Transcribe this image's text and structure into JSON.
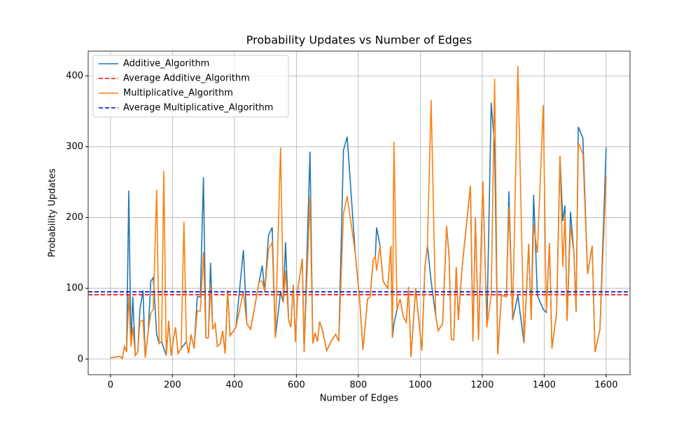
{
  "chart_data": {
    "type": "line",
    "title": "Probability Updates vs Number of Edges",
    "x_label": "Number of Edges",
    "y_label": "Probability Updates",
    "xlim": [
      -72,
      1677
    ],
    "ylim": [
      -22,
      435
    ],
    "xticks": [
      0,
      200,
      400,
      600,
      800,
      1000,
      1200,
      1400,
      1600
    ],
    "yticks": [
      0,
      100,
      200,
      300,
      400
    ],
    "grid": true,
    "legend": "upper left",
    "x": [
      0,
      20,
      30,
      38,
      45,
      52,
      59,
      66,
      72,
      80,
      88,
      95,
      105,
      112,
      122,
      130,
      138,
      149,
      157,
      165,
      172,
      180,
      188,
      196,
      204,
      210,
      218,
      228,
      237,
      245,
      252,
      260,
      270,
      280,
      290,
      300,
      308,
      316,
      323,
      330,
      338,
      345,
      355,
      362,
      370,
      378,
      386,
      405,
      429,
      440,
      452,
      466,
      480,
      490,
      498,
      510,
      522,
      532,
      549,
      558,
      565,
      575,
      582,
      590,
      597,
      605,
      619,
      625,
      644,
      653,
      660,
      668,
      675,
      685,
      698,
      712,
      727,
      737,
      752,
      764,
      790,
      805,
      815,
      830,
      838,
      848,
      855,
      859,
      870,
      880,
      895,
      905,
      910,
      915,
      925,
      935,
      945,
      955,
      962,
      970,
      985,
      1005,
      1015,
      1023,
      1035,
      1050,
      1058,
      1072,
      1085,
      1093,
      1100,
      1108,
      1116,
      1123,
      1135,
      1162,
      1170,
      1178,
      1188,
      1202,
      1215,
      1229,
      1240,
      1250,
      1262,
      1278,
      1286,
      1298,
      1315,
      1335,
      1350,
      1358,
      1366,
      1378,
      1397,
      1407,
      1417,
      1425,
      1440,
      1451,
      1460,
      1467,
      1474,
      1485,
      1496,
      1503,
      1510,
      1525,
      1540,
      1555,
      1564,
      1580,
      1600
    ],
    "series": [
      {
        "name": "Additive_Algorithm",
        "color": "#1f77b4",
        "style": "solid",
        "values": [
          2,
          3,
          4,
          1,
          18,
          10,
          238,
          18,
          88,
          5,
          10,
          70,
          97,
          2,
          40,
          110,
          115,
          35,
          22,
          25,
          15,
          5,
          54,
          5,
          30,
          45,
          8,
          15,
          20,
          25,
          8,
          35,
          15,
          88,
          88,
          257,
          30,
          30,
          136,
          42,
          50,
          18,
          22,
          40,
          8,
          97,
          33,
          45,
          154,
          50,
          42,
          75,
          110,
          132,
          95,
          175,
          186,
          30,
          95,
          80,
          165,
          55,
          45,
          105,
          24,
          100,
          142,
          10,
          293,
          22,
          37,
          25,
          53,
          40,
          12,
          25,
          35,
          25,
          295,
          314,
          150,
          80,
          13,
          85,
          88,
          140,
          145,
          186,
          160,
          110,
          100,
          160,
          30,
          50,
          70,
          85,
          60,
          52,
          102,
          3,
          100,
          12,
          130,
          160,
          110,
          60,
          40,
          50,
          188,
          145,
          28,
          27,
          130,
          55,
          130,
          245,
          25,
          200,
          27,
          251,
          45,
          362,
          300,
          7,
          90,
          88,
          237,
          55,
          90,
          22,
          163,
          55,
          232,
          90,
          70,
          66,
          164,
          15,
          65,
          287,
          195,
          217,
          54,
          208,
          150,
          67,
          328,
          312,
          120,
          160,
          10,
          42,
          299
        ]
      },
      {
        "name": "Average Additive_Algorithm",
        "color": "#ff0000",
        "style": "dashed",
        "value": 91
      },
      {
        "name": "Multiplicative_Algorithm",
        "color": "#ff7f0e",
        "style": "solid",
        "values": [
          2,
          3,
          4,
          1,
          18,
          10,
          90,
          18,
          45,
          5,
          10,
          53,
          55,
          2,
          40,
          65,
          70,
          239,
          22,
          25,
          266,
          5,
          54,
          5,
          30,
          45,
          8,
          15,
          194,
          25,
          8,
          35,
          15,
          68,
          68,
          151,
          30,
          30,
          105,
          42,
          50,
          18,
          22,
          40,
          8,
          97,
          33,
          45,
          95,
          50,
          42,
          75,
          110,
          110,
          95,
          155,
          165,
          30,
          299,
          80,
          125,
          55,
          45,
          105,
          24,
          100,
          142,
          10,
          230,
          22,
          37,
          25,
          53,
          40,
          12,
          25,
          35,
          25,
          205,
          230,
          150,
          80,
          13,
          85,
          88,
          140,
          145,
          125,
          160,
          110,
          100,
          160,
          30,
          307,
          70,
          85,
          60,
          52,
          102,
          3,
          100,
          12,
          130,
          160,
          366,
          60,
          40,
          50,
          188,
          145,
          28,
          27,
          130,
          55,
          130,
          245,
          25,
          200,
          27,
          251,
          45,
          90,
          396,
          7,
          90,
          88,
          215,
          55,
          414,
          22,
          163,
          55,
          190,
          150,
          359,
          66,
          164,
          15,
          65,
          287,
          130,
          205,
          54,
          187,
          150,
          67,
          305,
          290,
          120,
          160,
          10,
          42,
          258
        ]
      },
      {
        "name": "Average Multiplicative_Algorithm",
        "color": "#0000cc",
        "style": "dashed",
        "value": 95
      }
    ]
  }
}
